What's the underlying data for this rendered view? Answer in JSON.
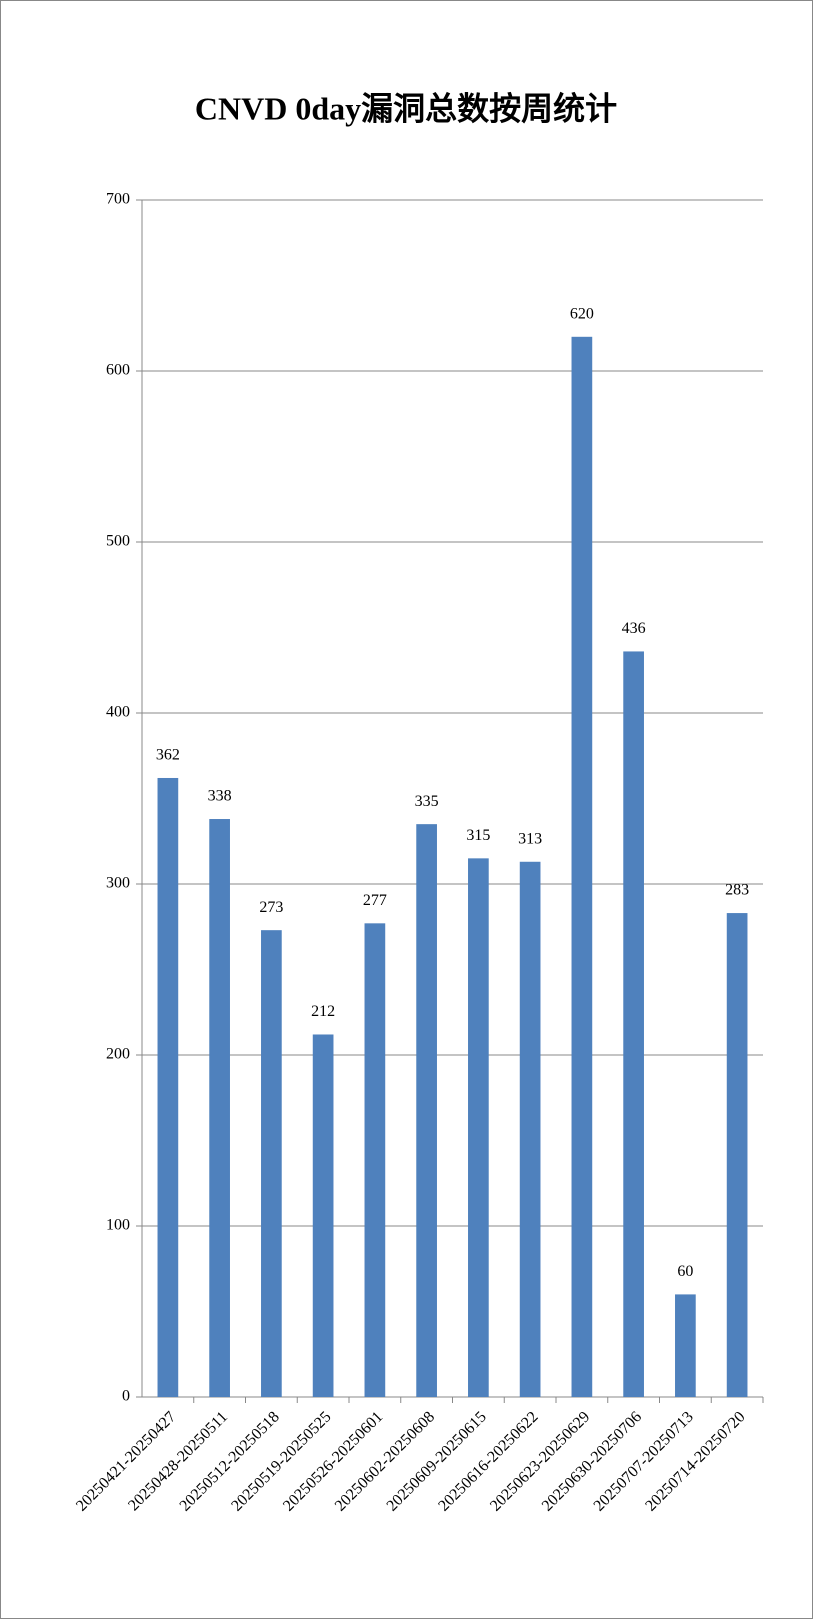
{
  "chart_data": {
    "type": "bar",
    "title": "CNVD 0day漏洞总数按周统计",
    "categories": [
      "20250421-20250427",
      "20250428-20250511",
      "20250512-20250518",
      "20250519-20250525",
      "20250526-20250601",
      "20250602-20250608",
      "20250609-20250615",
      "20250616-20250622",
      "20250623-20250629",
      "20250630-20250706",
      "20250707-20250713",
      "20250714-20250720"
    ],
    "values": [
      362,
      338,
      273,
      212,
      277,
      335,
      315,
      313,
      620,
      436,
      60,
      283
    ],
    "color": "#4f81bd",
    "ylim": [
      0,
      700
    ],
    "yticks": [
      0,
      100,
      200,
      300,
      400,
      500,
      600,
      700
    ],
    "grid": true
  }
}
